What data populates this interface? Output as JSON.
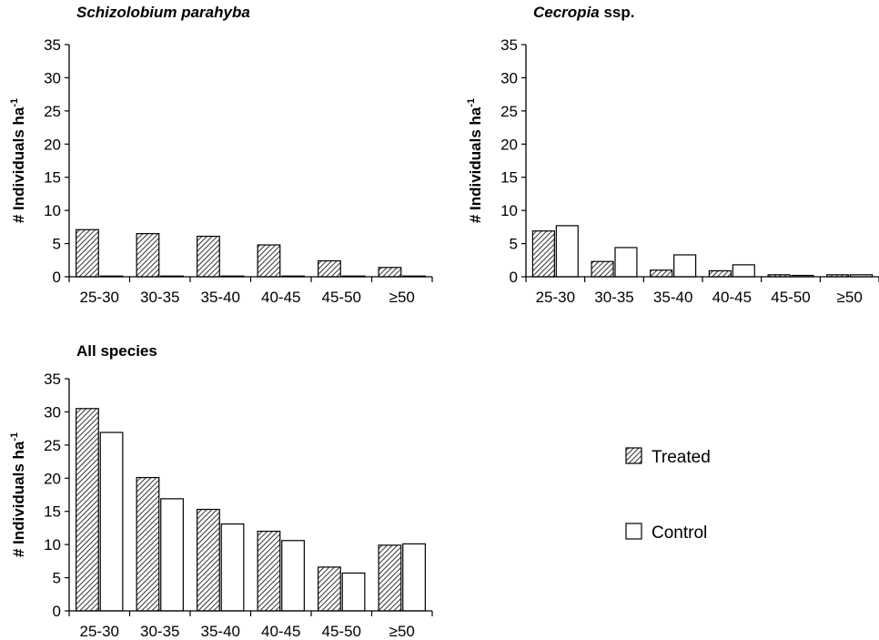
{
  "legend": [
    {
      "label": "Treated",
      "fill": "hatch"
    },
    {
      "label": "Control",
      "fill": "#ffffff"
    }
  ],
  "chart_data": [
    {
      "type": "bar",
      "title_parts": [
        {
          "text": "Schizolobium parahyba",
          "italic": true
        }
      ],
      "ylabel": "# Individuals ha",
      "ylabel_sup": "-1",
      "xlabel": "",
      "categories": [
        "25-30",
        "30-35",
        "35-40",
        "40-45",
        "45-50",
        "≥50"
      ],
      "series": [
        {
          "name": "Treated",
          "values": [
            7.1,
            6.5,
            6.1,
            4.8,
            2.4,
            1.4
          ]
        },
        {
          "name": "Control",
          "values": [
            0,
            0.1,
            0.1,
            0.1,
            0,
            0
          ]
        }
      ],
      "ylim": [
        0,
        35
      ],
      "yticks": [
        "0",
        "5",
        "10",
        "15",
        "20",
        "25",
        "30",
        "35"
      ],
      "grid": false
    },
    {
      "type": "bar",
      "title_parts": [
        {
          "text": "Cecropia",
          "italic": true
        },
        {
          "text": " ssp.",
          "italic": false
        }
      ],
      "ylabel": "# Individuals ha",
      "ylabel_sup": "-1",
      "xlabel": "",
      "categories": [
        "25-30",
        "30-35",
        "35-40",
        "40-45",
        "45-50",
        "≥50"
      ],
      "series": [
        {
          "name": "Treated",
          "values": [
            6.9,
            2.3,
            1.0,
            0.9,
            0.3,
            0.3
          ]
        },
        {
          "name": "Control",
          "values": [
            7.7,
            4.4,
            3.3,
            1.8,
            0.2,
            0.3
          ]
        }
      ],
      "ylim": [
        0,
        35
      ],
      "yticks": [
        "0",
        "5",
        "10",
        "15",
        "20",
        "25",
        "30",
        "35"
      ],
      "grid": false
    },
    {
      "type": "bar",
      "title_parts": [
        {
          "text": "All species",
          "italic": false
        }
      ],
      "ylabel": "# Individuals ha",
      "ylabel_sup": "-1",
      "xlabel": "",
      "categories": [
        "25-30",
        "30-35",
        "35-40",
        "40-45",
        "45-50",
        "≥50"
      ],
      "series": [
        {
          "name": "Treated",
          "values": [
            30.5,
            20.1,
            15.3,
            12.0,
            6.6,
            9.9
          ]
        },
        {
          "name": "Control",
          "values": [
            26.9,
            16.9,
            13.1,
            10.6,
            5.7,
            10.1
          ]
        }
      ],
      "ylim": [
        0,
        35
      ],
      "yticks": [
        "0",
        "5",
        "10",
        "15",
        "20",
        "25",
        "30",
        "35"
      ],
      "grid": false,
      "legend_position": "right"
    }
  ]
}
